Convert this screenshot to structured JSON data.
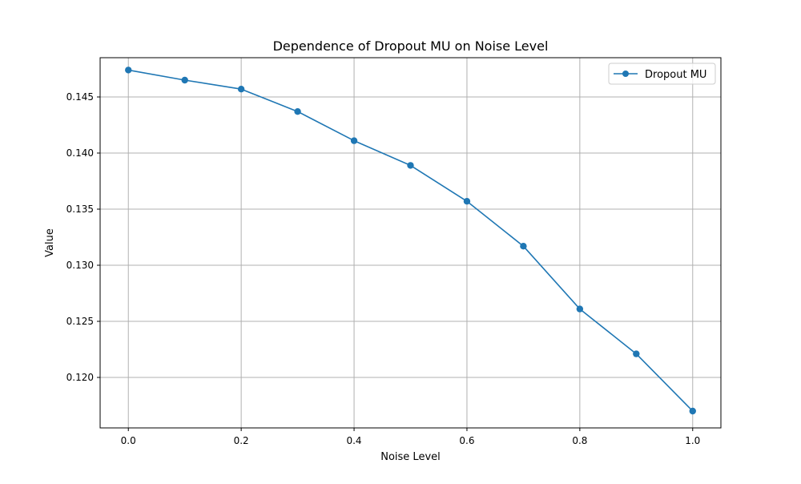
{
  "chart_data": {
    "type": "line",
    "title": "Dependence of Dropout MU on Noise Level",
    "xlabel": "Noise Level",
    "ylabel": "Value",
    "x": [
      0.0,
      0.1,
      0.2,
      0.3,
      0.4,
      0.5,
      0.6,
      0.7,
      0.8,
      0.9,
      1.0
    ],
    "series": [
      {
        "name": "Dropout MU",
        "values": [
          0.1474,
          0.1465,
          0.1457,
          0.1437,
          0.1411,
          0.1389,
          0.1357,
          0.1317,
          0.1261,
          0.1221,
          0.117
        ],
        "color": "#1f77b4",
        "marker": "circle"
      }
    ],
    "xlim": [
      -0.05,
      1.05
    ],
    "ylim": [
      0.1155,
      0.1485
    ],
    "xticks": [
      "0.0",
      "0.2",
      "0.4",
      "0.6",
      "0.8",
      "1.0"
    ],
    "yticks": [
      "0.120",
      "0.125",
      "0.130",
      "0.135",
      "0.140",
      "0.145"
    ],
    "grid": true,
    "legend_position": "upper-right"
  }
}
